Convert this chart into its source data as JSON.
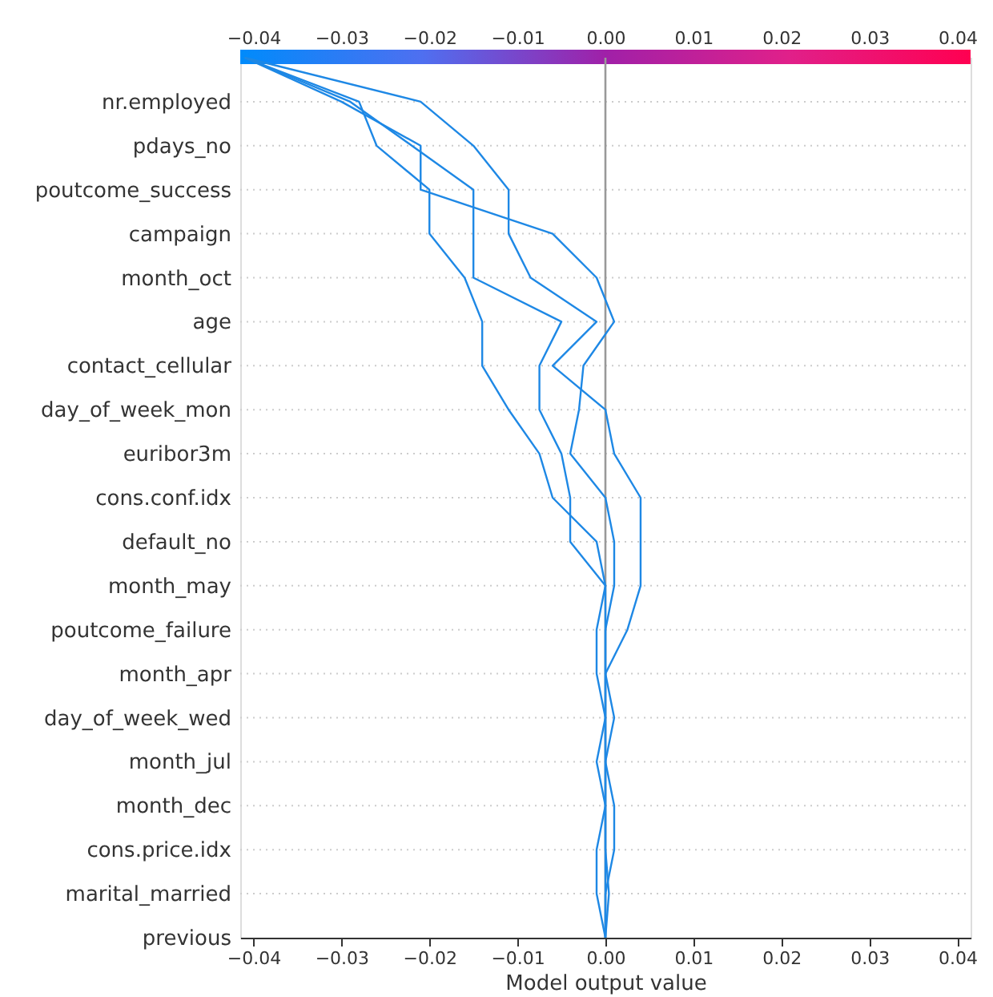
{
  "chart_data": {
    "type": "line",
    "orientation": "horizontal",
    "categories": [
      null,
      "nr.employed",
      "pdays_no",
      "poutcome_success",
      "campaign",
      "month_oct",
      "age",
      "contact_cellular",
      "day_of_week_mon",
      "euribor3m",
      "cons.conf.idx",
      "default_no",
      "month_may",
      "poutcome_failure",
      "month_apr",
      "day_of_week_wed",
      "month_jul",
      "month_dec",
      "cons.price.idx",
      "marital_married",
      "previous"
    ],
    "series": [
      {
        "color": "#1e88e5",
        "values": [
          -0.041,
          -0.021,
          -0.015,
          -0.011,
          -0.011,
          -0.0085,
          -0.001,
          -0.006,
          0,
          0.001,
          0.004,
          0.004,
          0.004,
          0.0025,
          0,
          0.001,
          0,
          0.001,
          0.001,
          0,
          0
        ]
      },
      {
        "color": "#1e88e5",
        "values": [
          -0.041,
          -0.03,
          -0.021,
          -0.021,
          -0.006,
          -0.001,
          0.001,
          -0.0025,
          -0.003,
          -0.004,
          0,
          0.001,
          0.001,
          0,
          0,
          0,
          0,
          0,
          0,
          0.0004,
          0
        ]
      },
      {
        "color": "#1e88e5",
        "values": [
          -0.041,
          -0.029,
          -0.022,
          -0.015,
          -0.015,
          -0.015,
          -0.005,
          -0.0075,
          -0.0075,
          -0.005,
          -0.004,
          -0.004,
          0,
          -0.001,
          -0.001,
          0,
          -0.001,
          0,
          -0.001,
          -0.001,
          0
        ]
      },
      {
        "color": "#1e88e5",
        "values": [
          -0.041,
          -0.028,
          -0.026,
          -0.02,
          -0.02,
          -0.016,
          -0.014,
          -0.014,
          -0.011,
          -0.0075,
          -0.006,
          -0.001,
          0,
          0,
          0,
          0,
          0,
          0,
          0,
          0,
          0
        ]
      }
    ],
    "xlabel": "Model output value",
    "xlim": [
      -0.0415,
      0.0415
    ],
    "xticks": [
      {
        "value": -0.04,
        "label": "−0.04"
      },
      {
        "value": -0.03,
        "label": "−0.03"
      },
      {
        "value": -0.02,
        "label": "−0.02"
      },
      {
        "value": -0.01,
        "label": "−0.01"
      },
      {
        "value": 0,
        "label": "0.00"
      },
      {
        "value": 0.01,
        "label": "0.01"
      },
      {
        "value": 0.02,
        "label": "0.02"
      },
      {
        "value": 0.03,
        "label": "0.03"
      },
      {
        "value": 0.04,
        "label": "0.04"
      }
    ],
    "clim": [
      -0.0415,
      0.0415
    ],
    "cticks": [
      {
        "value": -0.04,
        "label": "−0.04"
      },
      {
        "value": -0.03,
        "label": "−0.03"
      },
      {
        "value": -0.02,
        "label": "−0.02"
      },
      {
        "value": -0.01,
        "label": "−0.01"
      },
      {
        "value": 0,
        "label": "0.00"
      },
      {
        "value": 0.01,
        "label": "0.01"
      },
      {
        "value": 0.02,
        "label": "0.02"
      },
      {
        "value": 0.03,
        "label": "0.03"
      },
      {
        "value": 0.04,
        "label": "0.04"
      }
    ],
    "ref_lines": [
      {
        "axis": "x",
        "value": 0,
        "color": "#999999"
      }
    ],
    "grid": "y",
    "marker": "none",
    "line_style": "solid"
  }
}
